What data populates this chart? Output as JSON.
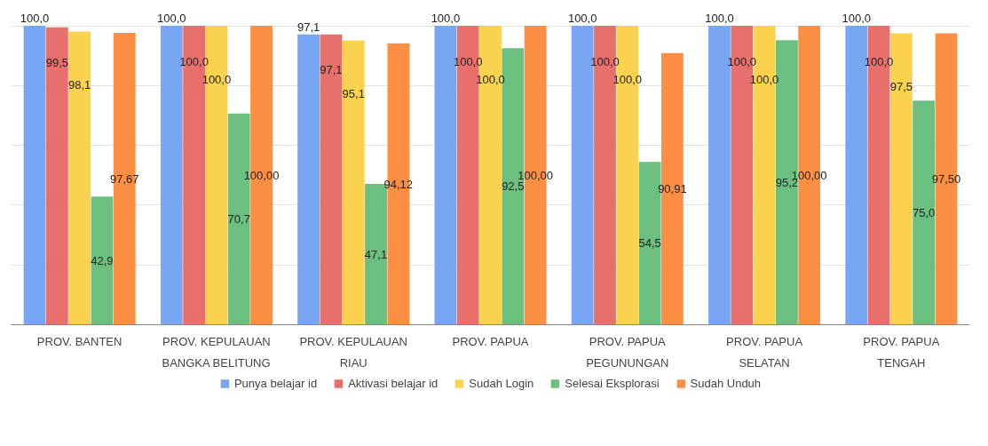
{
  "chart_data": {
    "type": "bar",
    "categories": [
      "PROV. BANTEN",
      "PROV. KEPULAUAN\nBANGKA BELITUNG",
      "PROV. KEPULAUAN\nRIAU",
      "PROV. PAPUA",
      "PROV. PAPUA\nPEGUNUNGAN",
      "PROV. PAPUA\nSELATAN",
      "PROV. PAPUA\nTENGAH"
    ],
    "series": [
      {
        "name": "Punya belajar id",
        "color": "#79a6f2",
        "values": [
          100.0,
          100.0,
          97.1,
          100.0,
          100.0,
          100.0,
          100.0
        ],
        "value_labels": [
          "100,0",
          "100,0",
          "97,1",
          "100,0",
          "100,0",
          "100,0",
          "100,0"
        ]
      },
      {
        "name": "Aktivasi belajar id",
        "color": "#e8706c",
        "values": [
          99.5,
          100.0,
          97.1,
          100.0,
          100.0,
          100.0,
          100.0
        ],
        "value_labels": [
          "99,5",
          "100,0",
          "97,1",
          "100,0",
          "100,0",
          "100,0",
          "100,0"
        ]
      },
      {
        "name": "Sudah Login",
        "color": "#fbd24e",
        "values": [
          98.1,
          100.0,
          95.1,
          100.0,
          100.0,
          100.0,
          97.5
        ],
        "value_labels": [
          "98,1",
          "100,0",
          "95,1",
          "100,0",
          "100,0",
          "100,0",
          "97,5"
        ]
      },
      {
        "name": "Selesai Eksplorasi",
        "color": "#6cc07f",
        "values": [
          42.9,
          70.7,
          47.1,
          92.5,
          54.5,
          95.2,
          75.0
        ],
        "value_labels": [
          "42,9",
          "70,7",
          "47,1",
          "92,5",
          "54,5",
          "95,2",
          "75,0"
        ]
      },
      {
        "name": "Sudah Unduh",
        "color": "#fd8f45",
        "values": [
          97.67,
          100.0,
          94.12,
          100.0,
          90.91,
          100.0,
          97.5
        ],
        "value_labels": [
          "97,67",
          "100,00",
          "94,12",
          "100,00",
          "90,91",
          "100,00",
          "97,50"
        ]
      }
    ],
    "ylim": [
      0,
      100
    ],
    "tick_labels": "x",
    "grid": "y",
    "legend": "bottom"
  }
}
